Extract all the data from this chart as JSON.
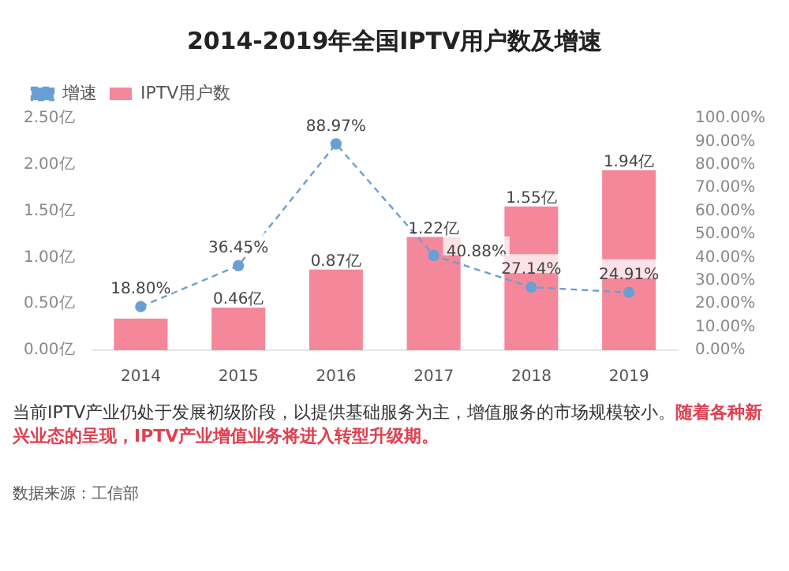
{
  "chart_data": {
    "type": "bar",
    "title": "2014-2019年全国IPTV用户数及增速",
    "categories": [
      "2014",
      "2015",
      "2016",
      "2017",
      "2018",
      "2019"
    ],
    "series": [
      {
        "name": "IPTV用户数",
        "color": "#f4889a",
        "values": [
          0.34,
          0.46,
          0.87,
          1.22,
          1.55,
          1.94
        ],
        "value_labels": [
          null,
          "0.46亿",
          "0.87亿",
          "1.22亿",
          "1.55亿",
          "1.94亿"
        ]
      },
      {
        "type": "line",
        "name": "增速",
        "color": "#6a9fd4",
        "axis": "y2",
        "values": [
          18.8,
          36.45,
          88.97,
          40.88,
          27.14,
          24.91
        ],
        "value_labels": [
          "18.80%",
          "36.45%",
          "88.97%",
          "40.88%",
          "27.14%",
          "24.91%"
        ]
      }
    ],
    "ylim": [
      0,
      2.5
    ],
    "yticks": [
      {
        "value": 0,
        "label": "0.00亿"
      },
      {
        "value": 0.5,
        "label": "0.50亿"
      },
      {
        "value": 1,
        "label": "1.00亿"
      },
      {
        "value": 1.5,
        "label": "1.50亿"
      },
      {
        "value": 2,
        "label": "2.00亿"
      },
      {
        "value": 2.5,
        "label": "2.50亿"
      }
    ],
    "y2lim": [
      0,
      100
    ],
    "y2ticks": [
      {
        "value": 0,
        "label": "0.00%"
      },
      {
        "value": 10,
        "label": "10.00%"
      },
      {
        "value": 20,
        "label": "20.00%"
      },
      {
        "value": 30,
        "label": "30.00%"
      },
      {
        "value": 40,
        "label": "40.00%"
      },
      {
        "value": 50,
        "label": "50.00%"
      },
      {
        "value": 60,
        "label": "60.00%"
      },
      {
        "value": 70,
        "label": "70.00%"
      },
      {
        "value": 80,
        "label": "80.00%"
      },
      {
        "value": 90,
        "label": "90.00%"
      },
      {
        "value": 100,
        "label": "100.00%"
      }
    ],
    "grid": false,
    "legend": "top left",
    "marker": "circle",
    "line_style": "dashed",
    "annotations": [
      "当前IPTV产业仍处于发展初级阶段，以提供基础服务为主，增值服务的市场规模较小。",
      "随着各种新兴业态的呈现，IPTV产业增值业务将进入转型升级期。",
      "数据来源：工信部"
    ]
  }
}
